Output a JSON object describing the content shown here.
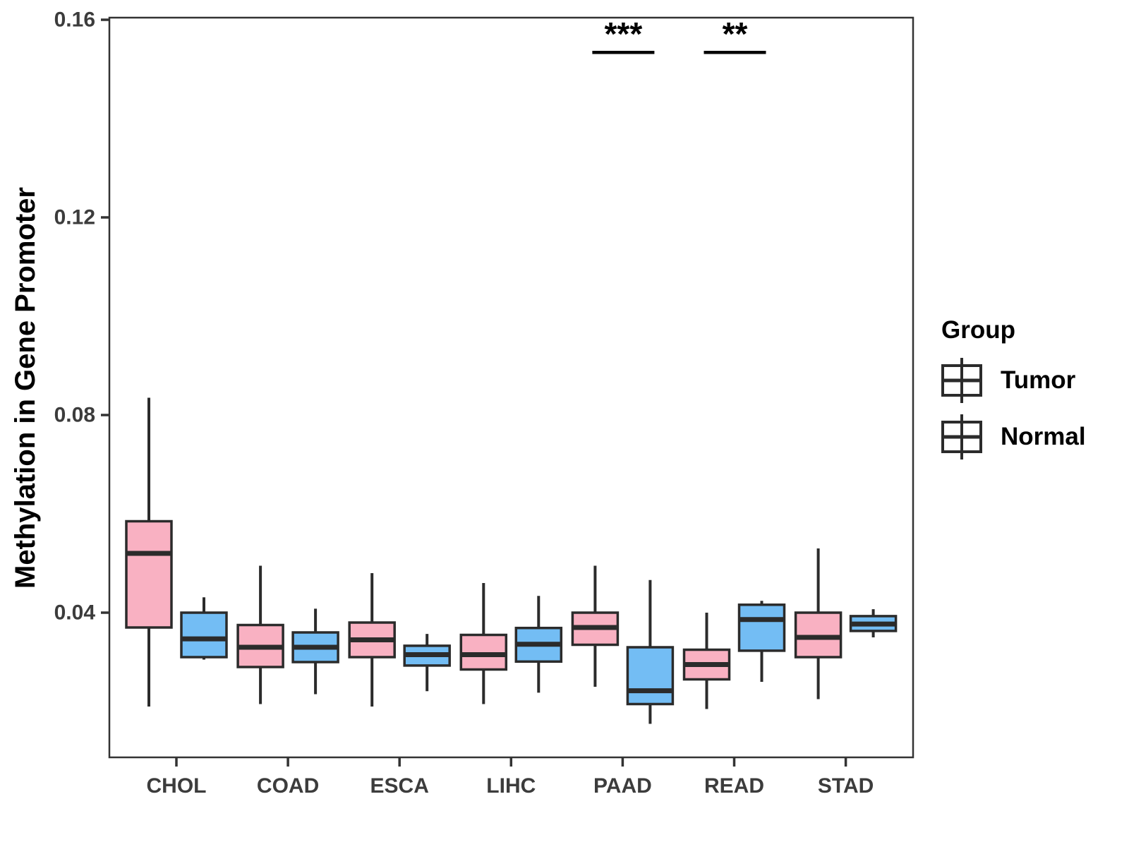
{
  "figure": {
    "background": "#FFFFFF"
  },
  "chart_data": {
    "type": "grouped_boxplot",
    "title": "",
    "xlabel": "",
    "ylabel": "Methylation in Gene Promoter",
    "categories": [
      "CHOL",
      "COAD",
      "ESCA",
      "LIHC",
      "PAAD",
      "READ",
      "STAD"
    ],
    "yticks": [
      0.04,
      0.08,
      0.12,
      0.16
    ],
    "ytick_labels": [
      "0.04",
      "0.08",
      "0.12",
      "0.16"
    ],
    "ylim": [
      0.011,
      0.1604
    ],
    "grid": false,
    "legend": {
      "title": "Group",
      "position": "right",
      "entries": [
        {
          "label": "Tumor",
          "color": "#F9B1C2"
        },
        {
          "label": "Normal",
          "color": "#73BDF4"
        }
      ]
    },
    "series": [
      {
        "name": "Tumor",
        "color": "#F9B1C2",
        "boxes": [
          {
            "category": "CHOL",
            "whisker_low": 0.021,
            "q1": 0.037,
            "median": 0.052,
            "q3": 0.0585,
            "whisker_high": 0.0835
          },
          {
            "category": "COAD",
            "whisker_low": 0.0215,
            "q1": 0.029,
            "median": 0.033,
            "q3": 0.0375,
            "whisker_high": 0.0495
          },
          {
            "category": "ESCA",
            "whisker_low": 0.021,
            "q1": 0.031,
            "median": 0.0345,
            "q3": 0.038,
            "whisker_high": 0.048
          },
          {
            "category": "LIHC",
            "whisker_low": 0.0215,
            "q1": 0.0285,
            "median": 0.0315,
            "q3": 0.0355,
            "whisker_high": 0.046
          },
          {
            "category": "PAAD",
            "whisker_low": 0.025,
            "q1": 0.0335,
            "median": 0.037,
            "q3": 0.04,
            "whisker_high": 0.0495
          },
          {
            "category": "READ",
            "whisker_low": 0.0205,
            "q1": 0.0265,
            "median": 0.0295,
            "q3": 0.0325,
            "whisker_high": 0.04
          },
          {
            "category": "STAD",
            "whisker_low": 0.0225,
            "q1": 0.031,
            "median": 0.035,
            "q3": 0.04,
            "whisker_high": 0.053
          }
        ]
      },
      {
        "name": "Normal",
        "color": "#73BDF4",
        "boxes": [
          {
            "category": "CHOL",
            "whisker_low": 0.0305,
            "q1": 0.031,
            "median": 0.0347,
            "q3": 0.04,
            "whisker_high": 0.0431
          },
          {
            "category": "COAD",
            "whisker_low": 0.0235,
            "q1": 0.03,
            "median": 0.033,
            "q3": 0.036,
            "whisker_high": 0.0408
          },
          {
            "category": "ESCA",
            "whisker_low": 0.0241,
            "q1": 0.0293,
            "median": 0.0315,
            "q3": 0.0333,
            "whisker_high": 0.0357
          },
          {
            "category": "LIHC",
            "whisker_low": 0.0238,
            "q1": 0.0301,
            "median": 0.0336,
            "q3": 0.0369,
            "whisker_high": 0.0434
          },
          {
            "category": "PAAD",
            "whisker_low": 0.0175,
            "q1": 0.0215,
            "median": 0.0242,
            "q3": 0.033,
            "whisker_high": 0.0466
          },
          {
            "category": "READ",
            "whisker_low": 0.026,
            "q1": 0.0323,
            "median": 0.0386,
            "q3": 0.0416,
            "whisker_high": 0.0424
          },
          {
            "category": "STAD",
            "whisker_low": 0.035,
            "q1": 0.0363,
            "median": 0.0377,
            "q3": 0.0393,
            "whisker_high": 0.0407
          }
        ]
      }
    ],
    "annotations": [
      {
        "category": "PAAD",
        "label": "***",
        "bar_y": 0.1534
      },
      {
        "category": "READ",
        "label": "**",
        "bar_y": 0.1534
      }
    ],
    "colors": {
      "box_border": "#2B2B2B",
      "axis_text": "#3C3C3C",
      "panel_border": "#333333",
      "annotation": "#000000"
    }
  }
}
